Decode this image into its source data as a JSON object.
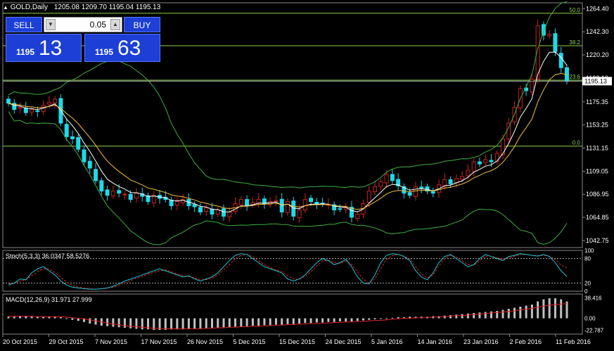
{
  "header": {
    "symbol": "GOLD,Daily",
    "ohlc": "1205.08 1209.70 1195.04 1195.13"
  },
  "trade_panel": {
    "sell_label": "SELL",
    "buy_label": "BUY",
    "lot": "0.05",
    "sell_small": "1195",
    "sell_big": "13",
    "buy_small": "1195",
    "buy_big": "63"
  },
  "colors": {
    "bull": "#cc2222",
    "bear": "#20d8e8",
    "sma": "#ffffff",
    "ema": "#f0c040",
    "bands": "#3fae3f",
    "fib": "#8fd14f",
    "stoch_main": "#18c8d8",
    "stoch_signal": "#e02020",
    "macd_hist": "#c0c0c0",
    "macd_signal": "#e02020"
  },
  "chart_data": [
    {
      "type": "candlestick",
      "symbol": "GOLD",
      "timeframe": "Daily",
      "ylim": [
        1036,
        1270
      ],
      "y_ticks": [
        "1264.40",
        "1242.30",
        "1220.20",
        "1198.10",
        "1175.35",
        "1153.25",
        "1131.15",
        "1109.05",
        "1086.95",
        "1064.85",
        "1042.75"
      ],
      "current_price": "1195.13",
      "x_labels": [
        "20 Oct 2015",
        "29 Oct 2015",
        "7 Nov 2015",
        "17 Nov 2015",
        "26 Nov 2015",
        "5 Dec 2015",
        "15 Dec 2015",
        "24 Dec 2015",
        "5 Jan 2016",
        "14 Jan 2016",
        "23 Jan 2016",
        "2 Feb 2016",
        "11 Feb 2016"
      ],
      "fib_levels": [
        {
          "label": "50.0",
          "price": 1260
        },
        {
          "label": "38.2",
          "price": 1229
        },
        {
          "label": "23.6",
          "price": 1196
        },
        {
          "label": "0.0",
          "price": 1133
        }
      ],
      "closes": [
        1174,
        1168,
        1170,
        1165,
        1168,
        1166,
        1172,
        1175,
        1178,
        1155,
        1142,
        1140,
        1130,
        1118,
        1112,
        1100,
        1090,
        1086,
        1090,
        1088,
        1087,
        1082,
        1088,
        1085,
        1080,
        1086,
        1083,
        1082,
        1076,
        1080,
        1082,
        1076,
        1075,
        1070,
        1074,
        1068,
        1072,
        1066,
        1070,
        1078,
        1082,
        1076,
        1079,
        1082,
        1078,
        1080,
        1081,
        1070,
        1080,
        1066,
        1072,
        1082,
        1080,
        1078,
        1078,
        1077,
        1072,
        1073,
        1074,
        1065,
        1068,
        1078,
        1090,
        1094,
        1099,
        1106,
        1100,
        1095,
        1088,
        1086,
        1094,
        1093,
        1090,
        1088,
        1096,
        1101,
        1097,
        1102,
        1104,
        1110,
        1118,
        1116,
        1120,
        1118,
        1126,
        1140,
        1155,
        1170,
        1188,
        1186,
        1197,
        1248,
        1239,
        1240,
        1223,
        1208,
        1195
      ]
    },
    {
      "type": "line",
      "name": "Stoch(5,3,3)",
      "header": "Stoch(5,3,3) 36.0347 58.5276",
      "ylim": [
        0,
        100
      ],
      "levels": [
        "100",
        "80",
        "20",
        "0"
      ],
      "main": [
        15,
        20,
        30,
        28,
        45,
        55,
        60,
        50,
        40,
        25,
        15,
        10,
        8,
        6,
        5,
        5,
        6,
        8,
        12,
        18,
        25,
        30,
        35,
        40,
        45,
        50,
        55,
        50,
        45,
        40,
        35,
        38,
        30,
        25,
        30,
        35,
        45,
        60,
        75,
        88,
        92,
        90,
        80,
        70,
        60,
        55,
        50,
        45,
        30,
        25,
        30,
        40,
        55,
        70,
        80,
        75,
        65,
        70,
        78,
        60,
        35,
        20,
        18,
        40,
        70,
        88,
        92,
        90,
        85,
        75,
        50,
        35,
        28,
        45,
        70,
        85,
        90,
        80,
        70,
        60,
        65,
        80,
        90,
        85,
        80,
        75,
        85,
        88,
        92,
        90,
        88,
        86,
        90,
        85,
        70,
        50,
        36
      ],
      "signal": [
        18,
        20,
        25,
        28,
        38,
        48,
        55,
        55,
        45,
        35,
        22,
        14,
        10,
        8,
        6,
        5,
        6,
        8,
        10,
        14,
        20,
        26,
        32,
        36,
        42,
        46,
        50,
        52,
        48,
        42,
        38,
        36,
        33,
        28,
        28,
        32,
        40,
        52,
        65,
        80,
        88,
        90,
        85,
        75,
        65,
        58,
        52,
        48,
        38,
        30,
        29,
        36,
        48,
        62,
        74,
        76,
        70,
        68,
        74,
        66,
        48,
        30,
        20,
        30,
        55,
        78,
        88,
        90,
        86,
        80,
        60,
        42,
        32,
        40,
        62,
        80,
        88,
        84,
        75,
        65,
        64,
        74,
        86,
        86,
        82,
        78,
        82,
        86,
        90,
        90,
        88,
        87,
        88,
        86,
        78,
        64,
        58
      ]
    },
    {
      "type": "bar",
      "name": "MACD(12,26,9)",
      "header": "MACD(12,26,9) 31.971 27.999",
      "ylim": [
        -30,
        46
      ],
      "y_ticks": [
        "38.416",
        "0.00",
        "-22.787"
      ],
      "histogram": [
        3,
        3,
        4,
        4,
        3,
        3,
        3,
        3,
        3,
        2,
        -1,
        -3,
        -5,
        -7,
        -10,
        -12,
        -14,
        -15,
        -16,
        -17,
        -18,
        -19,
        -20,
        -21,
        -21,
        -22,
        -22,
        -22,
        -21,
        -21,
        -21,
        -20,
        -20,
        -19,
        -19,
        -18,
        -18,
        -17,
        -17,
        -16,
        -16,
        -15,
        -14,
        -14,
        -13,
        -13,
        -12,
        -12,
        -11,
        -11,
        -10,
        -9,
        -9,
        -8,
        -8,
        -7,
        -7,
        -6,
        -6,
        -6,
        -5,
        -4,
        -3,
        -2,
        -1,
        0,
        1,
        2,
        2,
        3,
        3,
        3,
        3,
        4,
        4,
        5,
        6,
        7,
        8,
        9,
        10,
        11,
        12,
        13,
        14,
        16,
        18,
        20,
        22,
        24,
        26,
        32,
        36,
        38,
        38,
        36,
        32
      ],
      "signal": [
        4,
        4,
        4,
        4,
        4,
        3,
        3,
        3,
        3,
        3,
        2,
        1,
        0,
        -1,
        -3,
        -5,
        -7,
        -9,
        -11,
        -12,
        -14,
        -15,
        -16,
        -17,
        -18,
        -19,
        -19,
        -20,
        -20,
        -20,
        -20,
        -20,
        -20,
        -20,
        -19,
        -19,
        -18,
        -18,
        -17,
        -17,
        -16,
        -16,
        -15,
        -15,
        -14,
        -14,
        -13,
        -13,
        -12,
        -12,
        -11,
        -11,
        -10,
        -10,
        -9,
        -9,
        -8,
        -8,
        -7,
        -7,
        -6,
        -6,
        -5,
        -4,
        -4,
        -3,
        -2,
        -1,
        0,
        0,
        1,
        1,
        2,
        2,
        3,
        3,
        4,
        5,
        5,
        6,
        7,
        8,
        9,
        10,
        11,
        12,
        13,
        14,
        16,
        17,
        19,
        21,
        23,
        25,
        26,
        27,
        28
      ]
    }
  ]
}
